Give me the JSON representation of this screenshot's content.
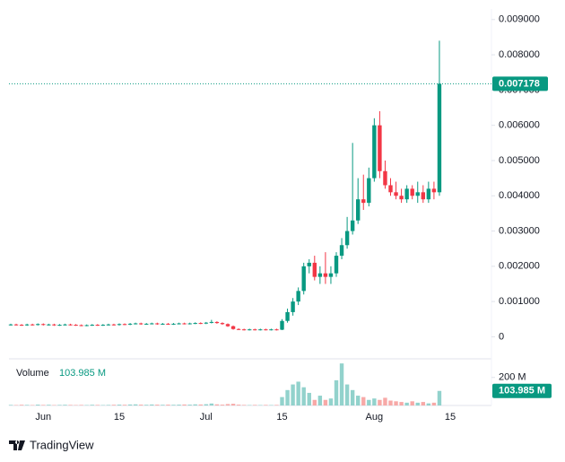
{
  "chart_data": {
    "type": "candlestick",
    "categories": [
      null,
      null,
      null,
      null,
      null,
      null,
      "Jun",
      null,
      null,
      null,
      null,
      null,
      null,
      null,
      null,
      null,
      null,
      null,
      null,
      null,
      "15",
      null,
      null,
      null,
      null,
      null,
      null,
      null,
      null,
      null,
      null,
      null,
      null,
      null,
      null,
      null,
      "Jul",
      null,
      null,
      null,
      null,
      null,
      null,
      null,
      null,
      null,
      null,
      null,
      null,
      null,
      "15",
      null,
      null,
      null,
      null,
      null,
      null,
      null,
      null,
      null,
      null,
      null,
      null,
      null,
      null,
      null,
      null,
      "Aug",
      null,
      null,
      null,
      null,
      null,
      null,
      null,
      null,
      null,
      null,
      null,
      null,
      null,
      "15"
    ],
    "open": [
      0.00034,
      0.00035,
      0.00034,
      0.00033,
      0.00035,
      0.00034,
      0.00036,
      0.00034,
      0.00035,
      0.00033,
      0.00034,
      0.00035,
      0.00034,
      0.00033,
      0.00032,
      0.00033,
      0.00034,
      0.00033,
      0.00034,
      0.00035,
      0.00034,
      0.00036,
      0.00035,
      0.00037,
      0.00038,
      0.00036,
      0.00037,
      0.00038,
      0.00036,
      0.00037,
      0.00036,
      0.00037,
      0.00038,
      0.00037,
      0.00038,
      0.00039,
      0.00038,
      0.0004,
      0.00042,
      0.00039,
      0.00036,
      0.0003,
      0.00022,
      0.00021,
      0.0002,
      0.00021,
      0.0002,
      0.00021,
      0.0002,
      0.00021,
      0.0002,
      0.00045,
      0.0007,
      0.001,
      0.0013,
      0.002,
      0.0021,
      0.0017,
      0.0018,
      0.0017,
      0.0018,
      0.0023,
      0.0026,
      0.003,
      0.0033,
      0.0039,
      0.0038,
      0.0045,
      0.006,
      0.0047,
      0.0043,
      0.0041,
      0.004,
      0.0039,
      0.0042,
      0.004,
      0.0041,
      0.0039,
      0.0042,
      0.0041,
      null,
      null
    ],
    "high": [
      0.00037,
      0.00037,
      0.00036,
      0.00037,
      0.00037,
      0.00038,
      0.00038,
      0.00037,
      0.00037,
      0.00036,
      0.00037,
      0.00037,
      0.00036,
      0.00035,
      0.00035,
      0.00036,
      0.00036,
      0.00036,
      0.00037,
      0.00037,
      0.00038,
      0.00038,
      0.00039,
      0.0004,
      0.0004,
      0.00039,
      0.0004,
      0.0004,
      0.00039,
      0.00039,
      0.00039,
      0.0004,
      0.0004,
      0.0004,
      0.00041,
      0.00041,
      0.00042,
      0.00048,
      0.00044,
      0.00041,
      0.00038,
      0.00032,
      0.00024,
      0.00023,
      0.00023,
      0.00023,
      0.00023,
      0.00023,
      0.00023,
      0.00023,
      0.0005,
      0.0008,
      0.0011,
      0.0014,
      0.0021,
      0.0022,
      0.0023,
      0.002,
      0.0024,
      0.002,
      0.0024,
      0.0028,
      0.0034,
      0.0055,
      0.0045,
      0.0046,
      0.0048,
      0.0062,
      0.0064,
      0.005,
      0.0045,
      0.0044,
      0.0042,
      0.0043,
      0.0043,
      0.0044,
      0.0043,
      0.0044,
      0.0044,
      0.0084,
      null,
      null
    ],
    "low": [
      0.00032,
      0.00032,
      0.00031,
      0.00031,
      0.00032,
      0.00032,
      0.00032,
      0.00032,
      0.00031,
      0.00031,
      0.00032,
      0.00032,
      0.00031,
      0.0003,
      0.0003,
      0.00031,
      0.00031,
      0.00031,
      0.00032,
      0.00032,
      0.00032,
      0.00033,
      0.00033,
      0.00035,
      0.00034,
      0.00034,
      0.00035,
      0.00034,
      0.00034,
      0.00034,
      0.00034,
      0.00035,
      0.00035,
      0.00035,
      0.00036,
      0.00036,
      0.00036,
      0.00038,
      0.00037,
      0.00034,
      0.00028,
      0.0002,
      0.00019,
      0.00018,
      0.00018,
      0.00018,
      0.00018,
      0.00018,
      0.00018,
      0.00018,
      0.00019,
      0.0004,
      0.0006,
      0.0009,
      0.0012,
      0.0018,
      0.0016,
      0.0015,
      0.0015,
      0.0015,
      0.0017,
      0.0022,
      0.0025,
      0.0029,
      0.0032,
      0.0036,
      0.0037,
      0.0044,
      0.0045,
      0.0042,
      0.004,
      0.0039,
      0.0038,
      0.0038,
      0.0039,
      0.0038,
      0.0038,
      0.0038,
      0.0039,
      0.004,
      null,
      null
    ],
    "close": [
      0.00035,
      0.00034,
      0.00033,
      0.00035,
      0.00034,
      0.00036,
      0.00034,
      0.00035,
      0.00033,
      0.00034,
      0.00035,
      0.00034,
      0.00033,
      0.00032,
      0.00033,
      0.00034,
      0.00033,
      0.00034,
      0.00035,
      0.00034,
      0.00036,
      0.00035,
      0.00037,
      0.00038,
      0.00036,
      0.00037,
      0.00038,
      0.00036,
      0.00037,
      0.00036,
      0.00037,
      0.00038,
      0.00037,
      0.00038,
      0.00039,
      0.00038,
      0.0004,
      0.00042,
      0.00039,
      0.00036,
      0.0003,
      0.00022,
      0.00021,
      0.0002,
      0.00021,
      0.0002,
      0.00021,
      0.0002,
      0.00021,
      0.0002,
      0.00045,
      0.0007,
      0.001,
      0.0013,
      0.002,
      0.0021,
      0.0017,
      0.0018,
      0.0017,
      0.0018,
      0.0023,
      0.0026,
      0.003,
      0.0033,
      0.0039,
      0.0038,
      0.0045,
      0.006,
      0.0047,
      0.0043,
      0.0041,
      0.004,
      0.0039,
      0.0042,
      0.004,
      0.0041,
      0.0039,
      0.0042,
      0.0041,
      0.007178,
      null,
      null
    ],
    "up_color": "#089981",
    "down_color": "#f23645",
    "ylim": [
      -0.0006,
      0.0093
    ],
    "yticks": [
      {
        "value": 0.009,
        "label": "0.009000"
      },
      {
        "value": 0.008,
        "label": "0.008000"
      },
      {
        "value": 0.007,
        "label": "0.007000"
      },
      {
        "value": 0.006,
        "label": "0.006000"
      },
      {
        "value": 0.005,
        "label": "0.005000"
      },
      {
        "value": 0.004,
        "label": "0.004000"
      },
      {
        "value": 0.003,
        "label": "0.003000"
      },
      {
        "value": 0.002,
        "label": "0.002000"
      },
      {
        "value": 0.001,
        "label": "0.001000"
      },
      0
    ],
    "volume": {
      "name": "Volume",
      "up_color": "#92d2cc",
      "down_color": "#f7a9a7",
      "values": [
        4,
        3,
        5,
        4,
        3,
        6,
        4,
        5,
        3,
        4,
        5,
        4,
        3,
        4,
        3,
        5,
        4,
        3,
        4,
        5,
        6,
        5,
        7,
        8,
        6,
        5,
        7,
        6,
        5,
        6,
        5,
        6,
        7,
        6,
        8,
        7,
        9,
        14,
        8,
        6,
        10,
        12,
        6,
        4,
        3,
        4,
        3,
        4,
        3,
        4,
        60,
        110,
        150,
        170,
        130,
        90,
        40,
        70,
        40,
        50,
        180,
        300,
        150,
        110,
        70,
        60,
        40,
        50,
        40,
        55,
        35,
        30,
        25,
        20,
        30,
        20,
        25,
        15,
        20,
        103.985,
        null,
        null
      ],
      "value_labels": [
        null,
        null,
        null,
        null,
        null,
        null,
        null,
        null,
        null,
        null,
        null,
        null,
        null,
        null,
        null,
        null,
        null,
        null,
        null,
        null,
        null,
        null,
        null,
        null,
        null,
        null,
        null,
        null,
        null,
        null,
        null,
        null,
        null,
        null,
        null,
        null,
        null,
        null,
        null,
        null,
        null,
        null,
        null,
        null,
        null,
        null,
        null,
        null,
        null,
        null,
        null,
        null,
        null,
        null,
        null,
        null,
        null,
        null,
        null,
        null,
        null,
        null,
        null,
        null,
        null,
        null,
        null,
        null,
        null,
        null,
        null,
        null,
        null,
        null,
        null,
        null,
        null,
        null,
        null,
        "103.985 M",
        null,
        null
      ],
      "ylim": [
        0,
        320
      ],
      "yticks": [
        {
          "value": 200,
          "label": "200 M"
        }
      ]
    },
    "brand": "TradingView"
  }
}
